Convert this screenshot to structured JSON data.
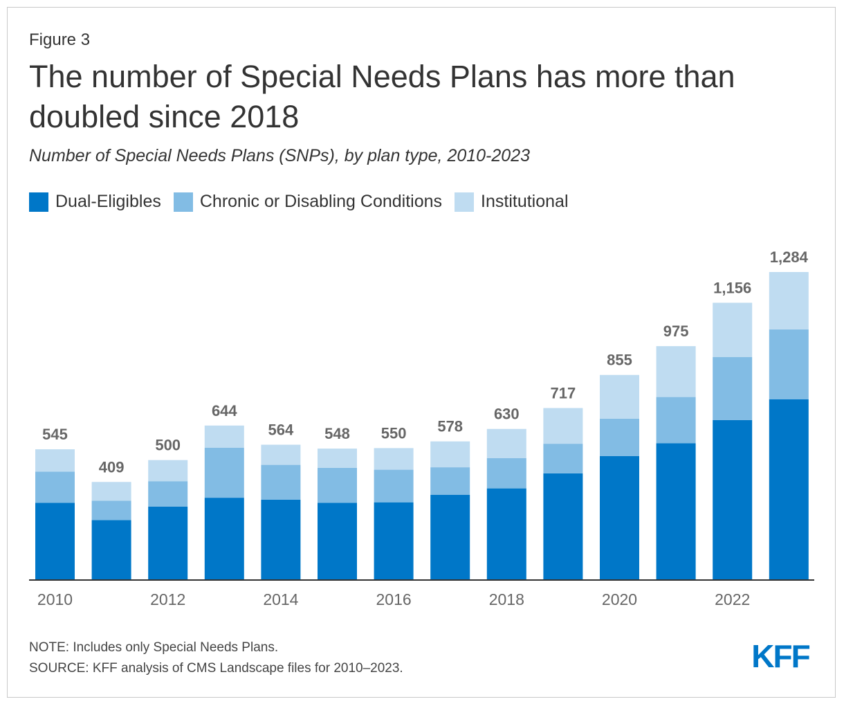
{
  "header": {
    "figure_label": "Figure 3",
    "title": "The number of Special Needs Plans has more than doubled since 2018",
    "subtitle": "Number of Special Needs Plans (SNPs), by plan type, 2010-2023"
  },
  "footer": {
    "note": "NOTE: Includes only Special Needs Plans.",
    "source": "SOURCE: KFF analysis of CMS Landscape files for 2010–2023.",
    "logo_text": "KFF",
    "logo_color": "#0077c8"
  },
  "chart_data": {
    "type": "bar",
    "stacked": true,
    "categories": [
      "2010",
      "2011",
      "2012",
      "2013",
      "2014",
      "2015",
      "2016",
      "2017",
      "2018",
      "2019",
      "2020",
      "2021",
      "2022",
      "2023"
    ],
    "tick_labels": [
      "2010",
      "",
      "2012",
      "",
      "2014",
      "",
      "2016",
      "",
      "2018",
      "",
      "2020",
      "",
      "2022",
      ""
    ],
    "series": [
      {
        "name": "Dual-Eligibles",
        "color": "#0077c8",
        "values": [
          322,
          250,
          306,
          343,
          335,
          322,
          324,
          355,
          382,
          445,
          517,
          570,
          667,
          753
        ]
      },
      {
        "name": "Chronic or Disabling Conditions",
        "color": "#82bce4",
        "values": [
          130,
          81,
          106,
          208,
          145,
          146,
          136,
          115,
          126,
          123,
          156,
          193,
          263,
          292
        ]
      },
      {
        "name": "Institutional",
        "color": "#bfdcf1",
        "values": [
          93,
          78,
          88,
          93,
          84,
          80,
          90,
          108,
          122,
          149,
          182,
          212,
          226,
          239
        ]
      }
    ],
    "totals": [
      545,
      409,
      500,
      644,
      564,
      548,
      550,
      578,
      630,
      717,
      855,
      975,
      1156,
      1284
    ],
    "total_labels": [
      "545",
      "409",
      "500",
      "644",
      "564",
      "548",
      "550",
      "578",
      "630",
      "717",
      "855",
      "975",
      "1,156",
      "1,284"
    ],
    "ylim": [
      0,
      1300
    ],
    "grid": false,
    "legend_position": "top-left",
    "axis_color": "#333333",
    "label_color": "#666666"
  }
}
